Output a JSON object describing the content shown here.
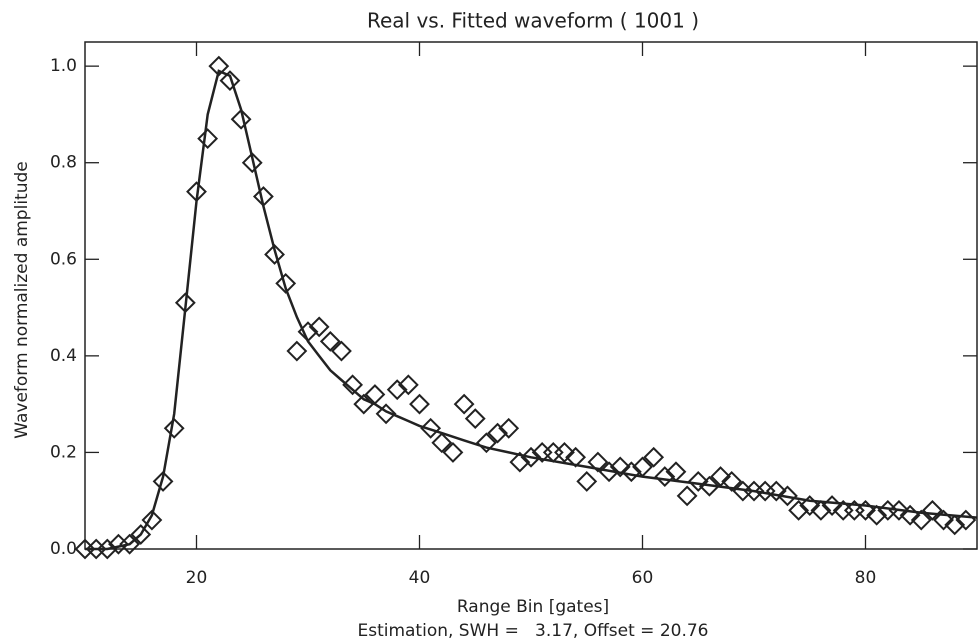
{
  "chart_data": {
    "type": "scatter",
    "title": "Real vs. Fitted waveform ( 1001 )",
    "x_label": "Range Bin [gates]",
    "y_label": "Waveform normalized amplitude",
    "annotation": "Estimation, SWH =   3.17, Offset = 20.76",
    "xlim": [
      10,
      90
    ],
    "ylim": [
      0,
      1.05
    ],
    "xticks": [
      20,
      40,
      60,
      80
    ],
    "yticks": [
      {
        "value": 0,
        "label": "0.0"
      },
      0.2,
      0.4,
      0.6,
      0.8,
      {
        "value": 1,
        "label": "1.0"
      }
    ],
    "series": [
      {
        "marker": "diamond",
        "color": "#222222",
        "x": [
          10,
          11,
          12,
          13,
          14,
          15,
          16,
          17,
          18,
          19,
          20,
          21,
          22,
          23,
          24,
          25,
          26,
          27,
          28,
          29,
          30,
          31,
          32,
          33,
          34,
          35,
          36,
          37,
          38,
          39,
          40,
          41,
          42,
          43,
          44,
          45,
          46,
          47,
          48,
          49,
          50,
          51,
          52,
          53,
          54,
          55,
          56,
          57,
          58,
          59,
          60,
          61,
          62,
          63,
          64,
          65,
          66,
          67,
          68,
          69,
          70,
          71,
          72,
          73,
          74,
          75,
          76,
          77,
          78,
          79,
          80,
          81,
          82,
          83,
          84,
          85,
          86,
          87,
          88,
          89
        ],
        "values": [
          0,
          0,
          0,
          0.01,
          0.01,
          0.03,
          0.06,
          0.14,
          0.25,
          0.51,
          0.74,
          0.85,
          1.0,
          0.97,
          0.89,
          0.8,
          0.73,
          0.61,
          0.55,
          0.41,
          0.45,
          0.46,
          0.43,
          0.41,
          0.34,
          0.3,
          0.32,
          0.28,
          0.33,
          0.34,
          0.3,
          0.25,
          0.22,
          0.2,
          0.3,
          0.27,
          0.22,
          0.24,
          0.25,
          0.18,
          0.19,
          0.2,
          0.2,
          0.2,
          0.19,
          0.14,
          0.18,
          0.16,
          0.17,
          0.16,
          0.17,
          0.19,
          0.15,
          0.16,
          0.11,
          0.14,
          0.13,
          0.15,
          0.14,
          0.12,
          0.12,
          0.12,
          0.12,
          0.11,
          0.08,
          0.09,
          0.08,
          0.09,
          0.08,
          0.08,
          0.08,
          0.07,
          0.08,
          0.08,
          0.07,
          0.06,
          0.08,
          0.06,
          0.05,
          0.06
        ]
      },
      {
        "marker": "line",
        "color": "#222222",
        "x": [
          10,
          11,
          12,
          13,
          14,
          15,
          16,
          17,
          18,
          19,
          20,
          21,
          22,
          23,
          24,
          25,
          26,
          27,
          28,
          29,
          30,
          31,
          32,
          33,
          34,
          35,
          36,
          37,
          38,
          39,
          40,
          42,
          44,
          46,
          48,
          50,
          55,
          60,
          65,
          70,
          75,
          80,
          85,
          90
        ],
        "values": [
          0,
          0,
          0,
          0.005,
          0.01,
          0.03,
          0.07,
          0.15,
          0.28,
          0.5,
          0.72,
          0.9,
          0.99,
          0.98,
          0.91,
          0.81,
          0.71,
          0.62,
          0.54,
          0.48,
          0.43,
          0.4,
          0.37,
          0.35,
          0.33,
          0.31,
          0.3,
          0.285,
          0.275,
          0.265,
          0.255,
          0.24,
          0.225,
          0.21,
          0.2,
          0.19,
          0.17,
          0.15,
          0.135,
          0.12,
          0.1,
          0.09,
          0.075,
          0.065
        ]
      }
    ]
  }
}
